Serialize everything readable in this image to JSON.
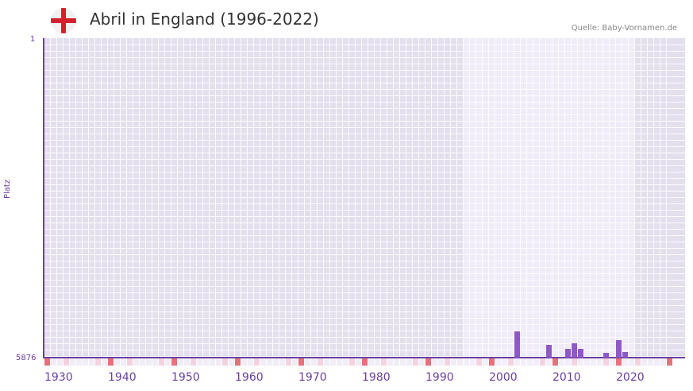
{
  "header": {
    "title": "Abril in England (1996-2022)",
    "source": "Quelle: Baby-Vornamen.de",
    "flag_icon": "england-flag-icon"
  },
  "colors": {
    "bar": "#8f58c9",
    "axis": "#6a3fa0",
    "decade_marker": "#e8707a",
    "half_decade_marker": "#f5d3de",
    "shade_dark": "#e3dfed",
    "shade_light": "#efebf8"
  },
  "chart_data": {
    "type": "bar",
    "title": "Abril in England (1996-2022)",
    "xlabel": "",
    "ylabel": "Platz",
    "y_axis_inverted": true,
    "ylim": [
      1,
      5876
    ],
    "xlim": [
      1929,
      2028
    ],
    "x_ticks": [
      "1930",
      "1940",
      "1950",
      "1960",
      "1970",
      "1980",
      "1990",
      "2000",
      "2010",
      "2020"
    ],
    "y_ticks": [
      "1",
      "5876"
    ],
    "highlight_range": [
      1996,
      2022
    ],
    "categories": [
      "2004",
      "2009",
      "2012",
      "2013",
      "2014",
      "2018",
      "2020",
      "2021"
    ],
    "values": [
      5390,
      5640,
      5710,
      5620,
      5710,
      5790,
      5560,
      5770
    ],
    "note": "values are approximate ranks (Platz); lower number = more popular; bars grow upward from rank 5876"
  },
  "axis": {
    "y_top_label": "1",
    "y_bottom_label": "5876",
    "y_title": "Platz",
    "x_labels": [
      {
        "label": "1930",
        "year": 1930
      },
      {
        "label": "1940",
        "year": 1940
      },
      {
        "label": "1950",
        "year": 1950
      },
      {
        "label": "1960",
        "year": 1960
      },
      {
        "label": "1970",
        "year": 1970
      },
      {
        "label": "1980",
        "year": 1980
      },
      {
        "label": "1990",
        "year": 1990
      },
      {
        "label": "2000",
        "year": 2000
      },
      {
        "label": "2010",
        "year": 2010
      },
      {
        "label": "2020",
        "year": 2020
      }
    ]
  }
}
